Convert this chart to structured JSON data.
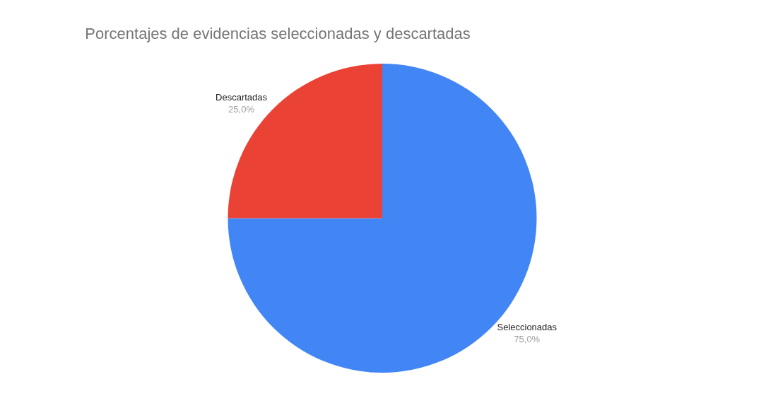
{
  "chart_data": {
    "type": "pie",
    "title": "Porcentajes de evidencias seleccionadas y descartadas",
    "categories": [
      "Seleccionadas",
      "Descartadas"
    ],
    "values": [
      75,
      25
    ],
    "value_labels": [
      "75,0%",
      "25,0%"
    ],
    "colors": [
      "#4285f4",
      "#ea4335"
    ]
  }
}
